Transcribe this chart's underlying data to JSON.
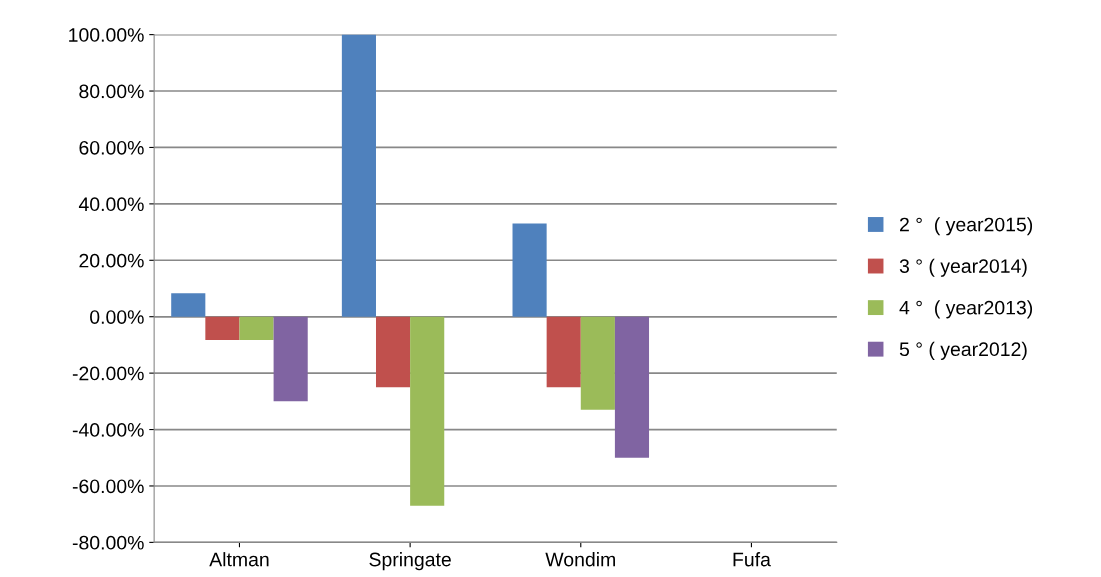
{
  "chart_data": {
    "type": "bar",
    "categories": [
      "Altman",
      "Springate",
      "Wondim",
      "Fufa"
    ],
    "series": [
      {
        "name": "2 °  ( year2015)",
        "color": "#4f81bd",
        "values": [
          8.3,
          100,
          33,
          0
        ]
      },
      {
        "name": "3 ° ( year2014)",
        "color": "#c0504d",
        "values": [
          -8.3,
          -25,
          -25,
          0
        ]
      },
      {
        "name": "4 °  ( year2013)",
        "color": "#9bbb59",
        "values": [
          -8.3,
          -67,
          -33,
          0
        ]
      },
      {
        "name": "5 ° ( year2012)",
        "color": "#8064a2",
        "values": [
          -30,
          0,
          -50,
          0
        ]
      }
    ],
    "ylim": [
      -80,
      100
    ],
    "yticks": [
      {
        "value": -80,
        "label": "-80.00%"
      },
      {
        "value": -60,
        "label": "-60.00%"
      },
      {
        "value": -40,
        "label": "-40.00%"
      },
      {
        "value": -20,
        "label": "-20.00%"
      },
      {
        "value": 0,
        "label": "0.00%"
      },
      {
        "value": 20,
        "label": "20.00%"
      },
      {
        "value": 40,
        "label": "40.00%"
      },
      {
        "value": 60,
        "label": "60.00%"
      },
      {
        "value": 80,
        "label": "80.00%"
      },
      {
        "value": 100,
        "label": "100.00%"
      }
    ],
    "grid": "y",
    "legend": "right"
  }
}
